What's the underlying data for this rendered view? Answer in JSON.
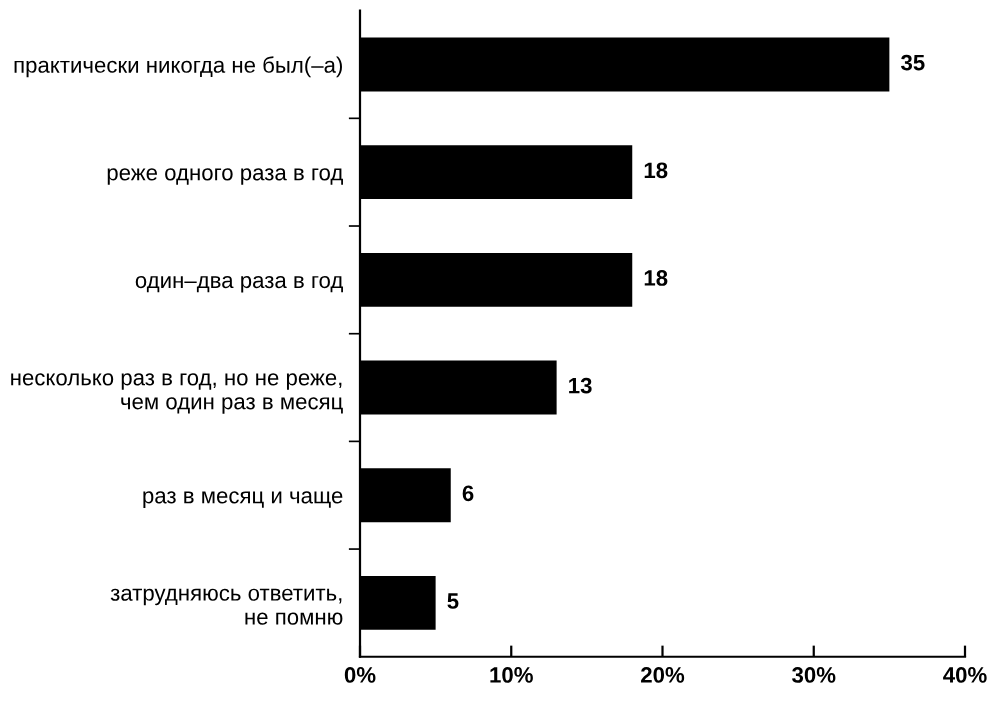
{
  "chart_data": {
    "type": "bar",
    "orientation": "horizontal",
    "categories": [
      "практически никогда не был(–а)",
      "реже одного раза в год",
      "один–два раза в год",
      "несколько раз в год, но не реже,\nчем один раз в месяц",
      "раз в месяц и чаще",
      "затрудняюсь ответить,\nне помню"
    ],
    "values": [
      35,
      18,
      18,
      13,
      6,
      5
    ],
    "color": "#000000",
    "xlim": [
      0,
      40
    ],
    "xticks": [
      {
        "value": 0,
        "label": "0%"
      },
      {
        "value": 10,
        "label": "10%"
      },
      {
        "value": 20,
        "label": "20%"
      },
      {
        "value": 30,
        "label": "30%"
      },
      {
        "value": 40,
        "label": "40%"
      }
    ],
    "data_labels": true,
    "grid": false,
    "legend": false
  }
}
